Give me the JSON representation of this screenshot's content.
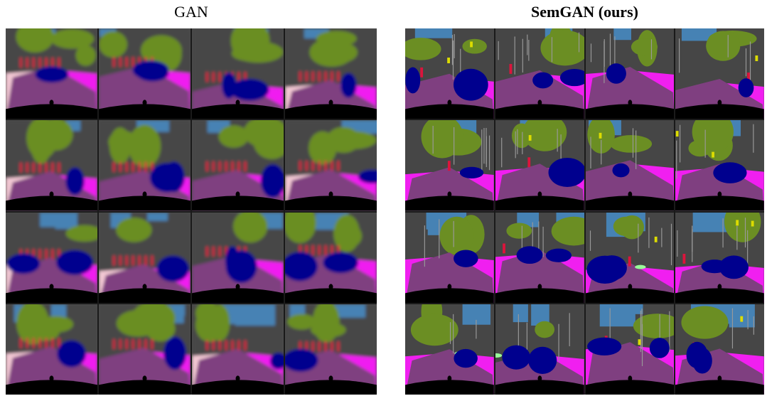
{
  "panels": [
    {
      "title": "GAN"
    },
    {
      "title": "SemGAN (ours)"
    }
  ],
  "colors": {
    "road": "#7f3f80",
    "sidewalk": "#f01ff0",
    "vegetation": "#6b8e23",
    "sky": "#4682b4",
    "car": "#00008e",
    "building": "#464646",
    "pole": "#999999",
    "sign": "#dcdc00",
    "person": "#dc143c",
    "hood": "#000000",
    "terrain": "#98fb98"
  }
}
